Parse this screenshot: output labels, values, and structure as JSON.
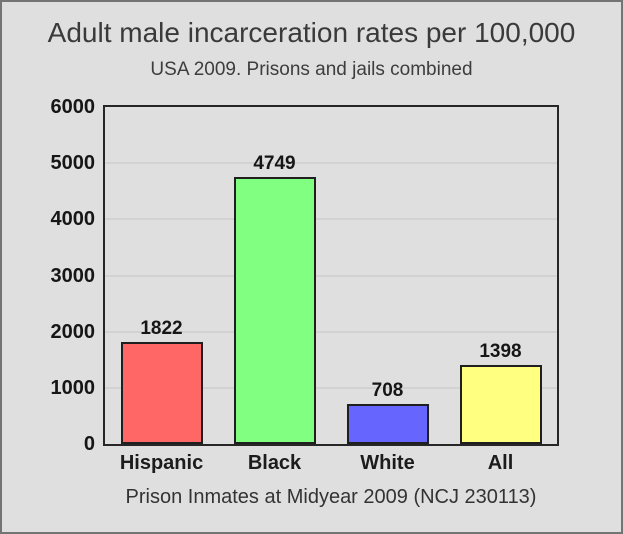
{
  "window": {
    "background": "#dfdfdf",
    "frame_border": "#747474"
  },
  "chart_data": {
    "type": "bar",
    "title": "Adult male incarceration rates per 100,000",
    "subtitle": "USA 2009. Prisons and jails combined",
    "caption": "Prison Inmates at Midyear 2009 (NCJ 230113)",
    "categories": [
      "Hispanic",
      "Black",
      "White",
      "All"
    ],
    "values": [
      1822,
      4749,
      708,
      1398
    ],
    "colors": [
      "#ff6666",
      "#80ff80",
      "#6666ff",
      "#ffff80"
    ],
    "bar_border_color": "#1f1f1f",
    "yticks": [
      0,
      1000,
      2000,
      3000,
      4000,
      5000,
      6000
    ],
    "ylim": [
      0,
      6000
    ],
    "grid": true,
    "gridline_color": "#d2d2d2",
    "legend": "none",
    "xlabel": "",
    "ylabel": ""
  }
}
